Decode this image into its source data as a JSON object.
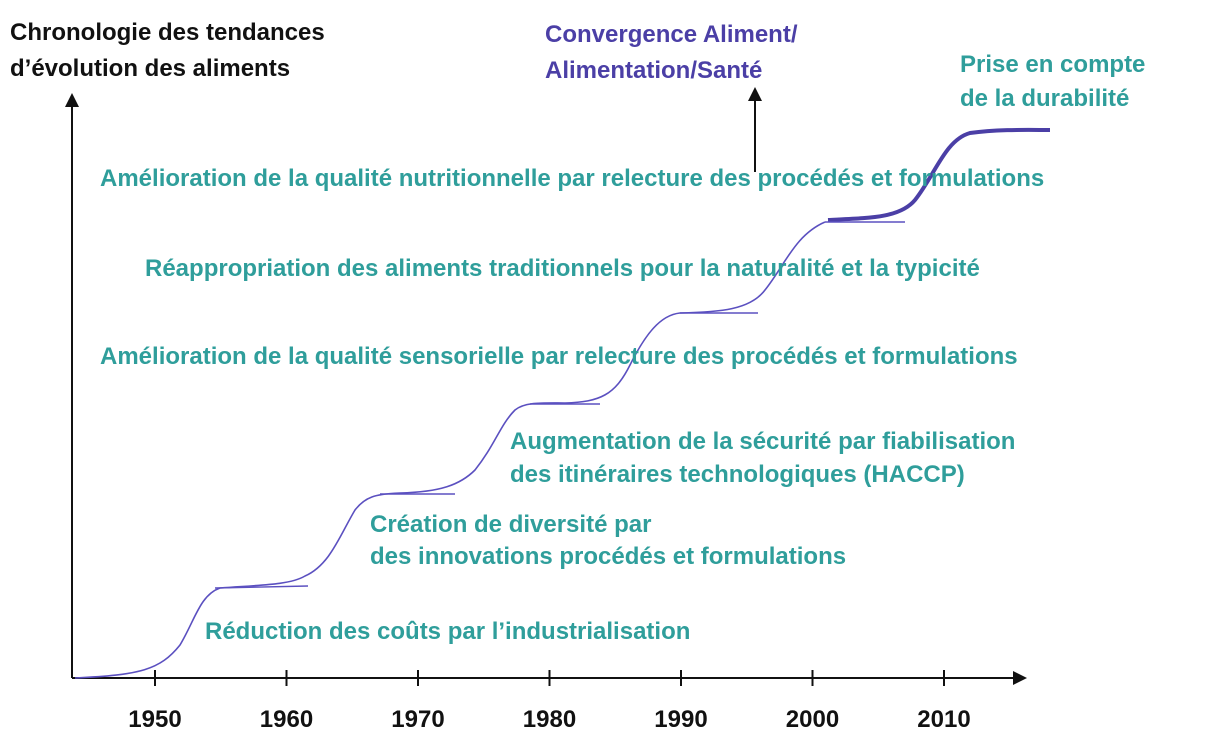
{
  "title": [
    "Chronologie des tendances",
    "d’évolution des aliments"
  ],
  "convergence": [
    "Convergence Aliment/",
    "Alimentation/Santé"
  ],
  "durability": [
    "Prise en compte",
    "de la durabilité"
  ],
  "trends": [
    [
      "Amélioration de la qualité nutritionnelle par relecture des procédés et formulations"
    ],
    [
      "Réappropriation des aliments traditionnels pour la naturalité et la typicité"
    ],
    [
      "Amélioration de la qualité sensorielle par relecture des procédés et formulations"
    ],
    [
      "Augmentation de la sécurité par fiabilisation",
      "des itinéraires technologiques (HACCP)"
    ],
    [
      "Création de diversité par",
      "des innovations procédés et formulations"
    ],
    [
      "Réduction des coûts par l’industrialisation"
    ]
  ],
  "x_axis": {
    "ticks": [
      "1950",
      "1960",
      "1970",
      "1980",
      "1990",
      "2000",
      "2010"
    ]
  }
}
